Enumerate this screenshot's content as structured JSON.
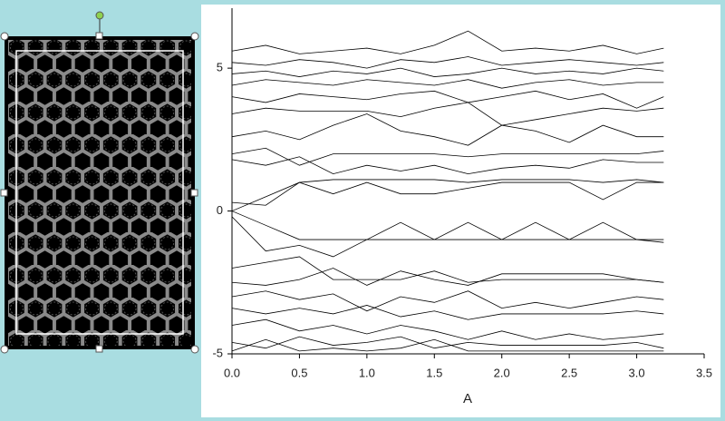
{
  "chart_data": {
    "type": "line",
    "x_label": "A",
    "color": "#000000",
    "x": [
      0,
      0.25,
      0.5,
      0.75,
      1.0,
      1.25,
      1.5,
      1.75,
      2.0,
      2.25,
      2.5,
      2.75,
      3.0,
      3.2
    ],
    "xlim": [
      0,
      3.5
    ],
    "ylim": [
      -5,
      7.1
    ],
    "xticks": [
      {
        "value": 0,
        "label": "0.0"
      },
      0.5,
      {
        "value": 1,
        "label": "1.0"
      },
      1.5,
      {
        "value": 2,
        "label": "2.0"
      },
      2.5,
      {
        "value": 3,
        "label": "3.0"
      },
      3.5
    ],
    "yticks": [
      -5,
      0,
      5
    ],
    "series": [
      {
        "values": [
          0,
          0.5,
          1.0,
          1.1,
          1.1,
          1.1,
          1.1,
          1.0,
          1.1,
          1.1,
          1.1,
          1.0,
          1.1,
          1.0
        ]
      },
      {
        "values": [
          0.3,
          0.2,
          1.0,
          0.6,
          1.0,
          0.6,
          0.6,
          0.8,
          1.0,
          1.0,
          1.0,
          0.4,
          1.0,
          1.0
        ]
      },
      {
        "values": [
          0,
          -0.5,
          -1.0,
          -1.0,
          -1.0,
          -1.0,
          -1.0,
          -1.0,
          -1.0,
          -1.0,
          -1.0,
          -1.0,
          -1.0,
          -1.0
        ]
      },
      {
        "values": [
          -0.2,
          -1.4,
          -1.2,
          -1.6,
          -1.0,
          -0.4,
          -1.0,
          -0.4,
          -1.0,
          -0.4,
          -1.0,
          -0.4,
          -1.0,
          -1.1
        ]
      },
      {
        "values": [
          -2.0,
          -1.8,
          -1.6,
          -2.4,
          -2.4,
          -2.4,
          -2.1,
          -2.5,
          -2.4,
          -2.4,
          -2.4,
          -2.4,
          -2.4,
          -2.5
        ]
      },
      {
        "values": [
          -2.5,
          -2.6,
          -2.4,
          -2.0,
          -2.6,
          -2.1,
          -2.4,
          -2.6,
          -2.2,
          -2.2,
          -2.2,
          -2.2,
          -2.4,
          -2.5
        ]
      },
      {
        "values": [
          -3.0,
          -2.8,
          -3.1,
          -2.9,
          -3.5,
          -3.0,
          -3.2,
          -2.8,
          -3.4,
          -3.2,
          -3.4,
          -3.2,
          -3.0,
          -3.1
        ]
      },
      {
        "values": [
          -3.4,
          -3.6,
          -3.4,
          -3.6,
          -3.3,
          -3.7,
          -3.5,
          -3.8,
          -3.6,
          -3.6,
          -3.6,
          -3.6,
          -3.5,
          -3.6
        ]
      },
      {
        "values": [
          -4.0,
          -3.8,
          -4.2,
          -4.0,
          -4.3,
          -4.0,
          -4.2,
          -4.5,
          -4.2,
          -4.5,
          -4.3,
          -4.5,
          -4.4,
          -4.3
        ]
      },
      {
        "values": [
          -4.6,
          -4.8,
          -4.4,
          -4.7,
          -4.6,
          -4.4,
          -4.8,
          -4.6,
          -4.7,
          -4.7,
          -4.7,
          -4.7,
          -4.6,
          -4.8
        ]
      },
      {
        "values": [
          -4.9,
          -4.5,
          -4.9,
          -4.8,
          -4.9,
          -4.8,
          -4.5,
          -4.9,
          -4.9,
          -4.9,
          -4.9,
          -4.9,
          -4.9,
          -4.9
        ]
      },
      {
        "values": [
          1.8,
          1.6,
          1.9,
          1.3,
          1.6,
          1.4,
          1.6,
          1.3,
          1.5,
          1.6,
          1.5,
          1.8,
          1.7,
          1.7
        ]
      },
      {
        "values": [
          2.0,
          2.2,
          1.6,
          2.0,
          2.0,
          2.0,
          2.0,
          1.9,
          2.0,
          2.0,
          2.0,
          2.0,
          2.0,
          2.1
        ]
      },
      {
        "values": [
          2.6,
          2.8,
          2.5,
          3.0,
          3.4,
          2.8,
          2.6,
          2.3,
          3.0,
          2.8,
          2.4,
          3.0,
          2.6,
          2.6
        ]
      },
      {
        "values": [
          3.4,
          3.6,
          3.5,
          3.5,
          3.5,
          3.3,
          3.6,
          3.8,
          3.0,
          3.2,
          3.4,
          3.6,
          3.5,
          3.6
        ]
      },
      {
        "values": [
          4.0,
          3.8,
          4.1,
          4.0,
          3.9,
          4.1,
          4.2,
          3.8,
          4.0,
          4.2,
          3.9,
          4.1,
          3.6,
          4.0
        ]
      },
      {
        "values": [
          4.4,
          4.6,
          4.5,
          4.4,
          4.6,
          4.5,
          4.4,
          4.6,
          4.3,
          4.5,
          4.6,
          4.4,
          4.5,
          4.5
        ]
      },
      {
        "values": [
          4.8,
          4.9,
          4.7,
          4.9,
          4.8,
          5.0,
          4.7,
          4.8,
          5.0,
          4.8,
          4.9,
          4.8,
          5.0,
          4.9
        ]
      },
      {
        "values": [
          5.2,
          5.1,
          5.3,
          5.2,
          5.0,
          5.3,
          5.2,
          5.4,
          5.1,
          5.2,
          5.3,
          5.2,
          5.1,
          5.2
        ]
      },
      {
        "values": [
          5.6,
          5.8,
          5.5,
          5.6,
          5.7,
          5.5,
          5.8,
          6.3,
          5.6,
          5.7,
          5.6,
          5.8,
          5.5,
          5.7
        ]
      }
    ]
  }
}
